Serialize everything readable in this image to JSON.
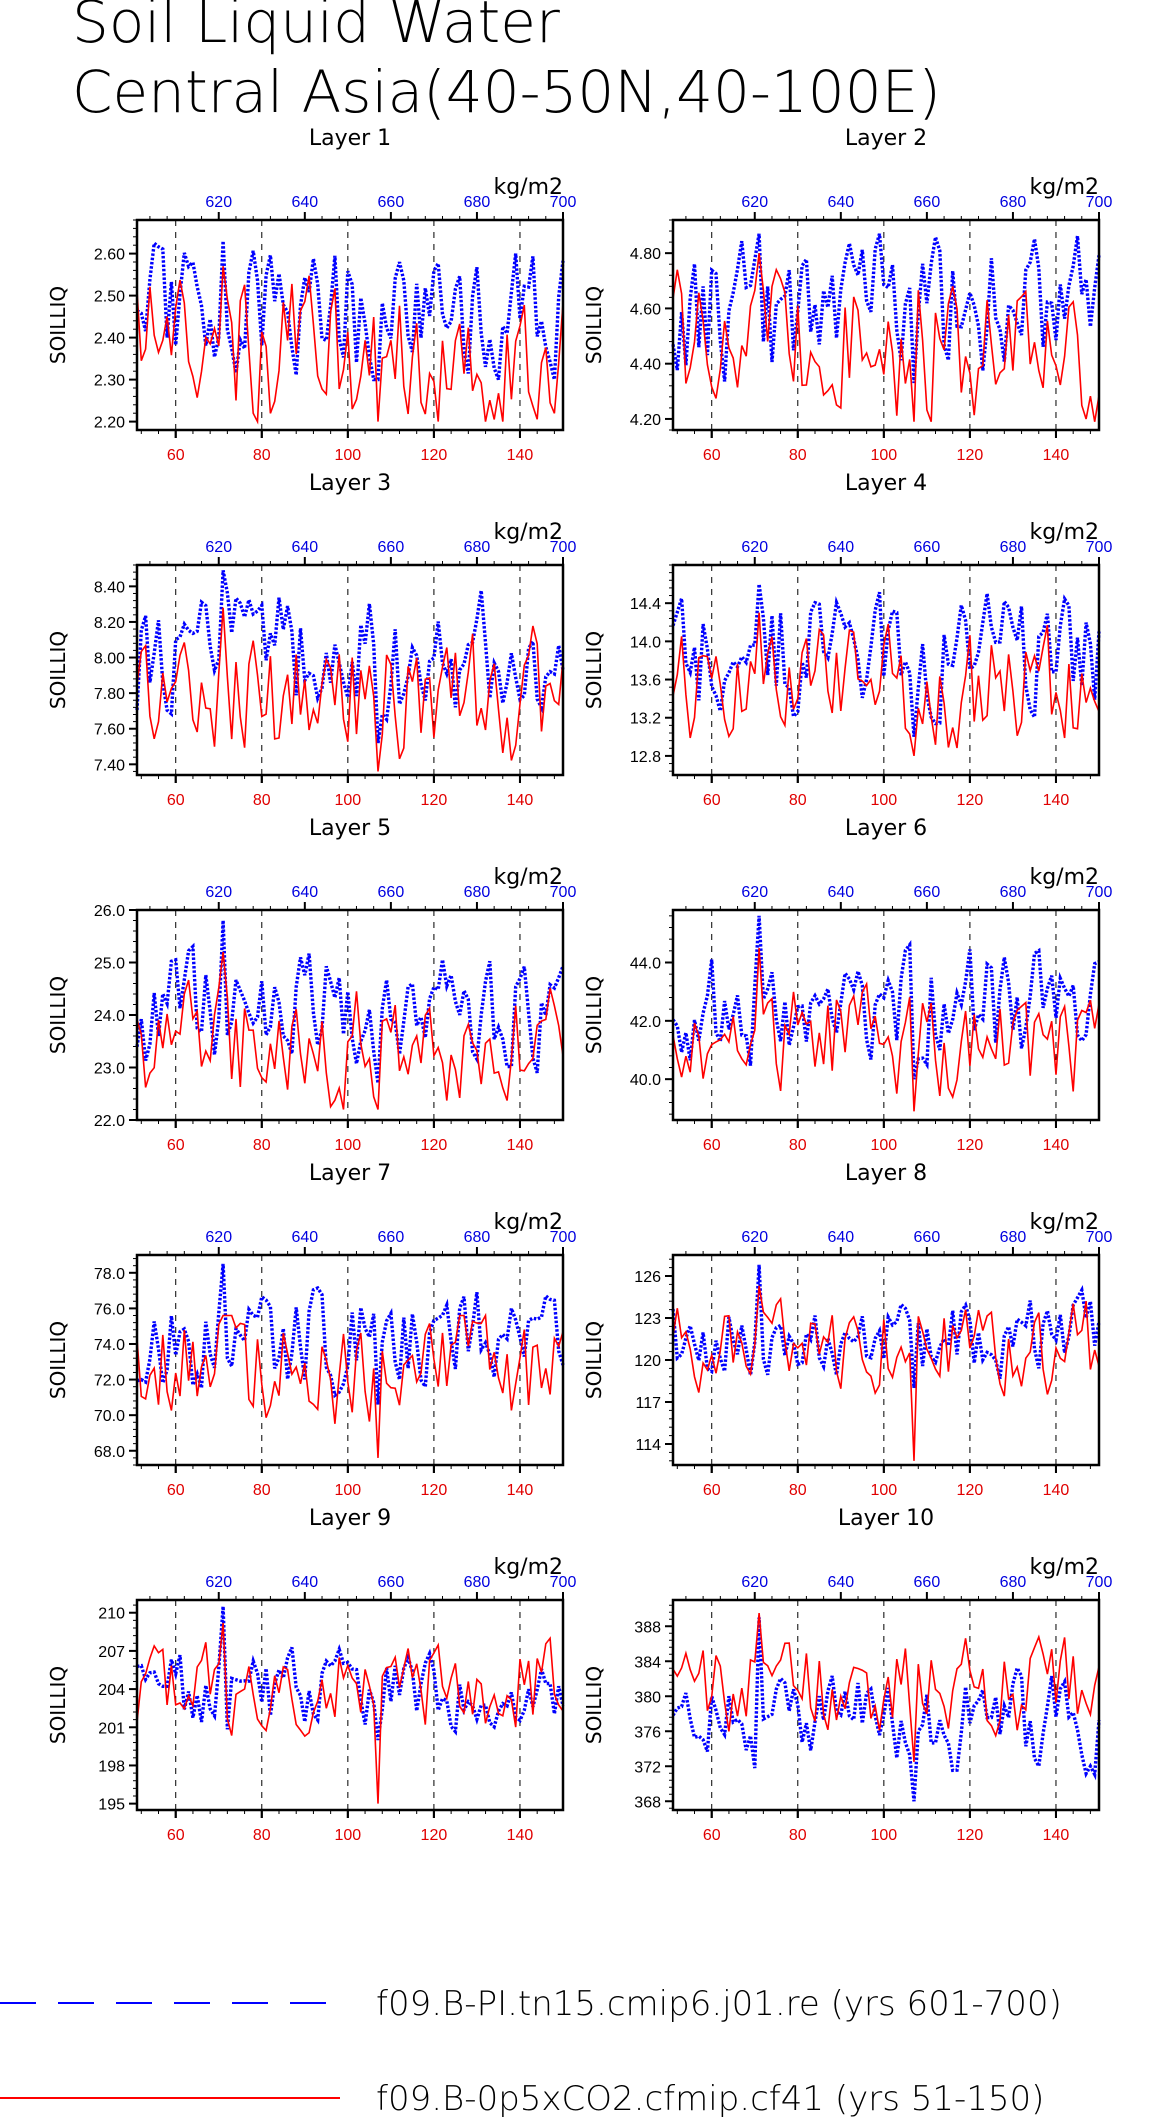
{
  "title": {
    "line1": "Soil Liquid Water",
    "line2": "Central Asia(40-50N,40-100E)"
  },
  "legend": {
    "items": [
      {
        "label": "f09.B-PI.tn15.cmip6.j01.re (yrs 601-700)",
        "color": "#0000ff",
        "style": "dashed"
      },
      {
        "label": "f09.B-0p5xCO2.cfmip.cf41 (yrs 51-150)",
        "color": "#ff0000",
        "style": "solid"
      }
    ]
  },
  "chart_data": [
    {
      "type": "line",
      "title": "Layer 1",
      "ylabel": "SOILLIQ",
      "units": "kg/m2",
      "ylim": [
        2.18,
        2.68
      ],
      "yticks": [
        "2.20",
        "2.30",
        "2.40",
        "2.50",
        "2.60"
      ],
      "x_bottom": {
        "range": [
          51,
          150
        ],
        "ticks": [
          "60",
          "80",
          "100",
          "120",
          "140"
        ],
        "color": "#ff0000"
      },
      "x_top": {
        "range": [
          601,
          700
        ],
        "ticks": [
          "620",
          "640",
          "660",
          "680",
          "700"
        ],
        "color": "#0000ff"
      },
      "grid_x_dashed": [
        60,
        80,
        100,
        120,
        140
      ],
      "series": [
        {
          "name": "f09.B-PI.tn15.cmip6.j01.re (yrs 601-700)",
          "color": "#0000ff",
          "axis": "top",
          "base": 2.45,
          "amp": 0.09,
          "seed": 11,
          "min": 2.3,
          "max": 2.63
        },
        {
          "name": "f09.B-0p5xCO2.cfmip.cf41 (yrs 51-150)",
          "color": "#ff0000",
          "axis": "bottom",
          "base": 2.37,
          "amp": 0.1,
          "seed": 23,
          "min": 2.2,
          "max": 2.57
        }
      ]
    },
    {
      "type": "line",
      "title": "Layer 2",
      "ylabel": "SOILLIQ",
      "units": "kg/m2",
      "ylim": [
        4.16,
        4.92
      ],
      "yticks": [
        "4.20",
        "4.40",
        "4.60",
        "4.80"
      ],
      "x_bottom": {
        "range": [
          51,
          150
        ],
        "ticks": [
          "60",
          "80",
          "100",
          "120",
          "140"
        ],
        "color": "#ff0000"
      },
      "x_top": {
        "range": [
          601,
          700
        ],
        "ticks": [
          "620",
          "640",
          "660",
          "680",
          "700"
        ],
        "color": "#0000ff"
      },
      "grid_x_dashed": [
        60,
        80,
        100,
        120,
        140
      ],
      "series": [
        {
          "name": "f09.B-PI.tn15.cmip6.j01.re (yrs 601-700)",
          "color": "#0000ff",
          "axis": "top",
          "base": 4.6,
          "amp": 0.14,
          "seed": 31,
          "min": 4.33,
          "max": 4.87
        },
        {
          "name": "f09.B-0p5xCO2.cfmip.cf41 (yrs 51-150)",
          "color": "#ff0000",
          "axis": "bottom",
          "base": 4.44,
          "amp": 0.15,
          "seed": 37,
          "min": 4.19,
          "max": 4.8
        }
      ]
    },
    {
      "type": "line",
      "title": "Layer 3",
      "ylabel": "SOILLIQ",
      "units": "kg/m2",
      "ylim": [
        7.34,
        8.52
      ],
      "yticks": [
        "7.40",
        "7.60",
        "7.80",
        "8.00",
        "8.20",
        "8.40"
      ],
      "x_bottom": {
        "range": [
          51,
          150
        ],
        "ticks": [
          "60",
          "80",
          "100",
          "120",
          "140"
        ],
        "color": "#ff0000"
      },
      "x_top": {
        "range": [
          601,
          700
        ],
        "ticks": [
          "620",
          "640",
          "660",
          "680",
          "700"
        ],
        "color": "#0000ff"
      },
      "grid_x_dashed": [
        60,
        80,
        100,
        120,
        140
      ],
      "series": [
        {
          "name": "f09.B-PI.tn15.cmip6.j01.re (yrs 601-700)",
          "color": "#0000ff",
          "axis": "top",
          "base": 8.0,
          "amp": 0.2,
          "seed": 41,
          "min": 7.52,
          "max": 8.49
        },
        {
          "name": "f09.B-0p5xCO2.cfmip.cf41 (yrs 51-150)",
          "color": "#ff0000",
          "axis": "bottom",
          "base": 7.78,
          "amp": 0.2,
          "seed": 43,
          "min": 7.36,
          "max": 8.28
        }
      ]
    },
    {
      "type": "line",
      "title": "Layer 4",
      "ylabel": "SOILLIQ",
      "units": "kg/m2",
      "ylim": [
        12.6,
        14.8
      ],
      "yticks": [
        "12.8",
        "13.2",
        "13.6",
        "14.0",
        "14.4"
      ],
      "x_bottom": {
        "range": [
          51,
          150
        ],
        "ticks": [
          "60",
          "80",
          "100",
          "120",
          "140"
        ],
        "color": "#ff0000"
      },
      "x_top": {
        "range": [
          601,
          700
        ],
        "ticks": [
          "620",
          "640",
          "660",
          "680",
          "700"
        ],
        "color": "#0000ff"
      },
      "grid_x_dashed": [
        60,
        80,
        100,
        120,
        140
      ],
      "series": [
        {
          "name": "f09.B-PI.tn15.cmip6.j01.re (yrs 601-700)",
          "color": "#0000ff",
          "axis": "top",
          "base": 13.9,
          "amp": 0.35,
          "seed": 47,
          "min": 13.0,
          "max": 14.6
        },
        {
          "name": "f09.B-0p5xCO2.cfmip.cf41 (yrs 51-150)",
          "color": "#ff0000",
          "axis": "bottom",
          "base": 13.5,
          "amp": 0.35,
          "seed": 53,
          "min": 12.8,
          "max": 14.3
        }
      ]
    },
    {
      "type": "line",
      "title": "Layer 5",
      "ylabel": "SOILLIQ",
      "units": "kg/m2",
      "ylim": [
        22.0,
        26.0
      ],
      "yticks": [
        "22.0",
        "23.0",
        "24.0",
        "25.0",
        "26.0"
      ],
      "x_bottom": {
        "range": [
          51,
          150
        ],
        "ticks": [
          "60",
          "80",
          "100",
          "120",
          "140"
        ],
        "color": "#ff0000"
      },
      "x_top": {
        "range": [
          601,
          700
        ],
        "ticks": [
          "620",
          "640",
          "660",
          "680",
          "700"
        ],
        "color": "#0000ff"
      },
      "grid_x_dashed": [
        60,
        80,
        100,
        120,
        140
      ],
      "series": [
        {
          "name": "f09.B-PI.tn15.cmip6.j01.re (yrs 601-700)",
          "color": "#0000ff",
          "axis": "top",
          "base": 24.1,
          "amp": 0.6,
          "seed": 59,
          "min": 22.7,
          "max": 25.8
        },
        {
          "name": "f09.B-0p5xCO2.cfmip.cf41 (yrs 51-150)",
          "color": "#ff0000",
          "axis": "bottom",
          "base": 23.5,
          "amp": 0.65,
          "seed": 61,
          "min": 22.2,
          "max": 25.2
        }
      ]
    },
    {
      "type": "line",
      "title": "Layer 6",
      "ylabel": "SOILLIQ",
      "units": "kg/m2",
      "ylim": [
        38.6,
        45.8
      ],
      "yticks": [
        "40.0",
        "42.0",
        "44.0"
      ],
      "x_bottom": {
        "range": [
          51,
          150
        ],
        "ticks": [
          "60",
          "80",
          "100",
          "120",
          "140"
        ],
        "color": "#ff0000"
      },
      "x_top": {
        "range": [
          601,
          700
        ],
        "ticks": [
          "620",
          "640",
          "660",
          "680",
          "700"
        ],
        "color": "#0000ff"
      },
      "grid_x_dashed": [
        60,
        80,
        100,
        120,
        140
      ],
      "series": [
        {
          "name": "f09.B-PI.tn15.cmip6.j01.re (yrs 601-700)",
          "color": "#0000ff",
          "axis": "top",
          "base": 42.4,
          "amp": 1.1,
          "seed": 67,
          "min": 40.0,
          "max": 45.6
        },
        {
          "name": "f09.B-0p5xCO2.cfmip.cf41 (yrs 51-150)",
          "color": "#ff0000",
          "axis": "bottom",
          "base": 41.4,
          "amp": 1.1,
          "seed": 71,
          "min": 38.9,
          "max": 44.5
        }
      ]
    },
    {
      "type": "line",
      "title": "Layer 7",
      "ylabel": "SOILLIQ",
      "units": "kg/m2",
      "ylim": [
        67.2,
        79.0
      ],
      "yticks": [
        "68.0",
        "70.0",
        "72.0",
        "74.0",
        "76.0",
        "78.0"
      ],
      "x_bottom": {
        "range": [
          51,
          150
        ],
        "ticks": [
          "60",
          "80",
          "100",
          "120",
          "140"
        ],
        "color": "#ff0000"
      },
      "x_top": {
        "range": [
          601,
          700
        ],
        "ticks": [
          "620",
          "640",
          "660",
          "680",
          "700"
        ],
        "color": "#0000ff"
      },
      "grid_x_dashed": [
        60,
        80,
        100,
        120,
        140
      ],
      "series": [
        {
          "name": "f09.B-PI.tn15.cmip6.j01.re (yrs 601-700)",
          "color": "#0000ff",
          "axis": "top",
          "base": 74.0,
          "amp": 1.6,
          "seed": 73,
          "min": 70.6,
          "max": 78.5
        },
        {
          "name": "f09.B-0p5xCO2.cfmip.cf41 (yrs 51-150)",
          "color": "#ff0000",
          "axis": "bottom",
          "base": 72.6,
          "amp": 1.8,
          "seed": 79,
          "min": 67.6,
          "max": 75.6
        }
      ]
    },
    {
      "type": "line",
      "title": "Layer 8",
      "ylabel": "SOILLIQ",
      "units": "kg/m2",
      "ylim": [
        112.5,
        127.5
      ],
      "yticks": [
        "114",
        "117",
        "120",
        "123",
        "126"
      ],
      "x_bottom": {
        "range": [
          51,
          150
        ],
        "ticks": [
          "60",
          "80",
          "100",
          "120",
          "140"
        ],
        "color": "#ff0000"
      },
      "x_top": {
        "range": [
          601,
          700
        ],
        "ticks": [
          "620",
          "640",
          "660",
          "680",
          "700"
        ],
        "color": "#0000ff"
      },
      "grid_x_dashed": [
        60,
        80,
        100,
        120,
        140
      ],
      "series": [
        {
          "name": "f09.B-PI.tn15.cmip6.j01.re (yrs 601-700)",
          "color": "#0000ff",
          "axis": "top",
          "base": 121.6,
          "amp": 1.5,
          "seed": 83,
          "min": 118.0,
          "max": 126.8
        },
        {
          "name": "f09.B-0p5xCO2.cfmip.cf41 (yrs 51-150)",
          "color": "#ff0000",
          "axis": "bottom",
          "base": 121.0,
          "amp": 1.8,
          "seed": 89,
          "min": 112.8,
          "max": 125.3
        }
      ]
    },
    {
      "type": "line",
      "title": "Layer 9",
      "ylabel": "SOILLIQ",
      "units": "kg/m2",
      "ylim": [
        194.5,
        211.0
      ],
      "yticks": [
        "195",
        "198",
        "201",
        "204",
        "207",
        "210"
      ],
      "x_bottom": {
        "range": [
          51,
          150
        ],
        "ticks": [
          "60",
          "80",
          "100",
          "120",
          "140"
        ],
        "color": "#ff0000"
      },
      "x_top": {
        "range": [
          601,
          700
        ],
        "ticks": [
          "620",
          "640",
          "660",
          "680",
          "700"
        ],
        "color": "#0000ff"
      },
      "grid_x_dashed": [
        60,
        80,
        100,
        120,
        140
      ],
      "series": [
        {
          "name": "f09.B-PI.tn15.cmip6.j01.re (yrs 601-700)",
          "color": "#0000ff",
          "axis": "top",
          "base": 203.8,
          "amp": 1.6,
          "seed": 97,
          "min": 200.0,
          "max": 210.5
        },
        {
          "name": "f09.B-0p5xCO2.cfmip.cf41 (yrs 51-150)",
          "color": "#ff0000",
          "axis": "bottom",
          "base": 204.5,
          "amp": 2.0,
          "seed": 101,
          "min": 195.0,
          "max": 209.2
        }
      ]
    },
    {
      "type": "line",
      "title": "Layer 10",
      "ylabel": "SOILLIQ",
      "units": "kg/m2",
      "ylim": [
        367.0,
        391.0
      ],
      "yticks": [
        "368",
        "372",
        "376",
        "380",
        "384",
        "388"
      ],
      "x_bottom": {
        "range": [
          51,
          150
        ],
        "ticks": [
          "60",
          "80",
          "100",
          "120",
          "140"
        ],
        "color": "#ff0000"
      },
      "x_top": {
        "range": [
          601,
          700
        ],
        "ticks": [
          "620",
          "640",
          "660",
          "680",
          "700"
        ],
        "color": "#0000ff"
      },
      "grid_x_dashed": [
        60,
        80,
        100,
        120,
        140
      ],
      "series": [
        {
          "name": "f09.B-PI.tn15.cmip6.j01.re (yrs 601-700)",
          "color": "#0000ff",
          "axis": "top",
          "base": 377.0,
          "amp": 3.0,
          "seed": 103,
          "min": 368.0,
          "max": 389.0
        },
        {
          "name": "f09.B-0p5xCO2.cfmip.cf41 (yrs 51-150)",
          "color": "#ff0000",
          "axis": "bottom",
          "base": 381.0,
          "amp": 3.0,
          "seed": 107,
          "min": 372.5,
          "max": 389.5
        }
      ]
    }
  ]
}
